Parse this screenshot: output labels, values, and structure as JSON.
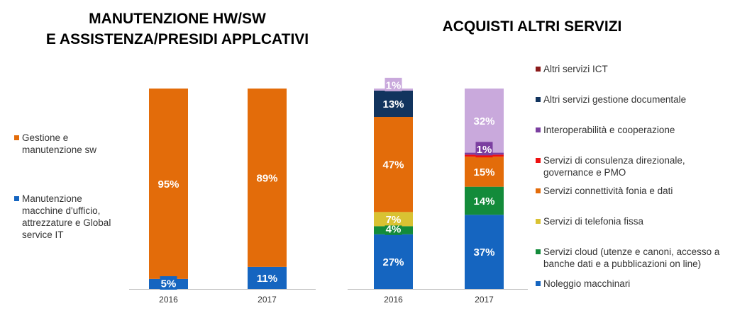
{
  "chart_data": [
    {
      "type": "bar",
      "stacked": true,
      "title": "MANUTENZIONE HW/SW\nE ASSISTENZA/PRESIDI APPLCATIVI",
      "categories": [
        "2016",
        "2017"
      ],
      "series": [
        {
          "name": "Manutenzione macchine d'ufficio, attrezzature e Global service IT",
          "values": [
            5,
            11
          ],
          "color": "#1565C0"
        },
        {
          "name": "Gestione e manutenzione sw",
          "values": [
            95,
            89
          ],
          "color": "#E36C0A"
        }
      ],
      "labels": [
        [
          "5%",
          "11%"
        ],
        [
          "95%",
          "89%"
        ]
      ],
      "legend_position": "left"
    },
    {
      "type": "bar",
      "stacked": true,
      "title": "ACQUISTI ALTRI SERVIZI",
      "categories": [
        "2016",
        "2017"
      ],
      "series": [
        {
          "name": "Noleggio macchinari",
          "values": [
            27,
            37
          ],
          "color": "#1565C0"
        },
        {
          "name": "Servizi cloud (utenze e canoni, accesso a banche dati e a pubblicazioni on line)",
          "values": [
            4,
            14
          ],
          "color": "#138B3A"
        },
        {
          "name": "Servizi di telefonia fissa",
          "values": [
            7,
            0
          ],
          "color": "#D9C232"
        },
        {
          "name": "Servizi connettività fonia e dati",
          "values": [
            47,
            15
          ],
          "color": "#E36C0A"
        },
        {
          "name": "Servizi di consulenza direzionale, governance e PMO",
          "values": [
            0,
            1
          ],
          "color": "#EE1111"
        },
        {
          "name": "Interoperabilità e cooperazione",
          "values": [
            0,
            1
          ],
          "color": "#7B3FA0"
        },
        {
          "name": "Altri servizi gestione documentale",
          "values": [
            13,
            0
          ],
          "color": "#12345E"
        },
        {
          "name": "Altri servizi ICT",
          "values": [
            1,
            32
          ],
          "color": "#C9A9DC"
        }
      ],
      "labels": [
        [
          "27%",
          "37%"
        ],
        [
          "4%",
          "14%"
        ],
        [
          "7%",
          ""
        ],
        [
          "47%",
          "15%"
        ],
        [
          "",
          "1%"
        ],
        [
          "",
          "1%"
        ],
        [
          "13%",
          ""
        ],
        [
          "1%",
          "32%"
        ]
      ],
      "legend_position": "right"
    }
  ]
}
